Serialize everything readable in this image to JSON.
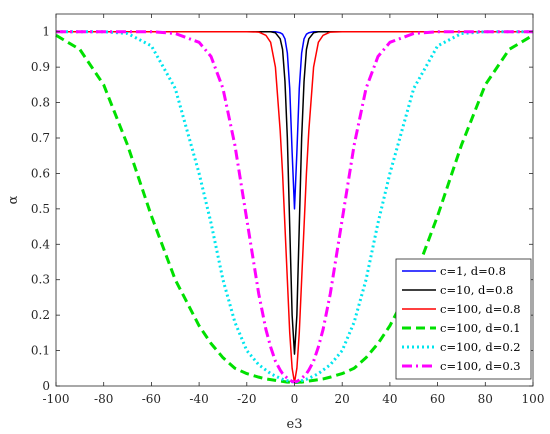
{
  "chart_data": {
    "type": "line",
    "title": "",
    "xlabel": "e3",
    "ylabel": "α",
    "xlim": [
      -100,
      100
    ],
    "ylim": [
      0,
      1.05
    ],
    "xticks": [
      -100,
      -80,
      -60,
      -40,
      -20,
      0,
      20,
      40,
      60,
      80,
      100
    ],
    "yticks": [
      0,
      0.1,
      0.2,
      0.3,
      0.4,
      0.5,
      0.6,
      0.7,
      0.8,
      0.9,
      1
    ],
    "xtick_labels": [
      "-100",
      "-80",
      "-60",
      "-40",
      "-20",
      "0",
      "20",
      "40",
      "60",
      "80",
      "100"
    ],
    "ytick_labels": [
      "0",
      "0.1",
      "0.2",
      "0.3",
      "0.4",
      "0.5",
      "0.6",
      "0.7",
      "0.8",
      "0.9",
      "1"
    ],
    "legend_position": "bottom-right",
    "grid": false,
    "x": [
      -100,
      -90,
      -80,
      -70,
      -60,
      -50,
      -40,
      -35,
      -30,
      -25,
      -20,
      -15,
      -12,
      -10,
      -8,
      -6,
      -5,
      -4,
      -3,
      -2,
      -1,
      0,
      1,
      2,
      3,
      4,
      5,
      6,
      8,
      10,
      12,
      15,
      20,
      25,
      30,
      35,
      40,
      50,
      60,
      70,
      80,
      90,
      100
    ],
    "series": [
      {
        "name": "c=1, d=0.8",
        "color": "#0000ff",
        "style": "solid",
        "values": [
          1,
          1,
          1,
          1,
          1,
          1,
          1,
          1,
          1,
          1,
          1,
          1,
          1,
          1,
          1,
          0.997,
          0.993,
          0.98,
          0.94,
          0.84,
          0.66,
          0.5,
          0.66,
          0.84,
          0.94,
          0.98,
          0.993,
          0.997,
          1,
          1,
          1,
          1,
          1,
          1,
          1,
          1,
          1,
          1,
          1,
          1,
          1,
          1,
          1
        ]
      },
      {
        "name": "c=10, d=0.8",
        "color": "#000000",
        "style": "solid",
        "values": [
          1,
          1,
          1,
          1,
          1,
          1,
          1,
          1,
          1,
          1,
          1,
          1,
          1,
          1,
          0.997,
          0.98,
          0.95,
          0.86,
          0.7,
          0.45,
          0.2,
          0.09,
          0.2,
          0.45,
          0.7,
          0.86,
          0.95,
          0.98,
          0.997,
          1,
          1,
          1,
          1,
          1,
          1,
          1,
          1,
          1,
          1,
          1,
          1,
          1,
          1
        ]
      },
      {
        "name": "c=100, d=0.8",
        "color": "#ff0000",
        "style": "solid",
        "values": [
          1,
          1,
          1,
          1,
          1,
          1,
          1,
          1,
          1,
          1,
          1,
          0.999,
          0.99,
          0.97,
          0.9,
          0.72,
          0.6,
          0.45,
          0.3,
          0.15,
          0.05,
          0.01,
          0.05,
          0.15,
          0.3,
          0.45,
          0.6,
          0.72,
          0.9,
          0.97,
          0.99,
          0.999,
          1,
          1,
          1,
          1,
          1,
          1,
          1,
          1,
          1,
          1,
          1
        ]
      },
      {
        "name": "c=100, d=0.1",
        "color": "#00e000",
        "style": "dashed",
        "values": [
          0.99,
          0.95,
          0.85,
          0.68,
          0.48,
          0.3,
          0.17,
          0.12,
          0.08,
          0.05,
          0.035,
          0.025,
          0.02,
          0.018,
          0.016,
          0.014,
          0.013,
          0.012,
          0.011,
          0.011,
          0.01,
          0.01,
          0.01,
          0.011,
          0.011,
          0.012,
          0.013,
          0.014,
          0.016,
          0.018,
          0.02,
          0.025,
          0.035,
          0.05,
          0.08,
          0.12,
          0.17,
          0.3,
          0.48,
          0.68,
          0.85,
          0.95,
          0.99
        ]
      },
      {
        "name": "c=100, d=0.2",
        "color": "#00e5ee",
        "style": "dotted",
        "values": [
          1,
          1,
          1,
          0.995,
          0.96,
          0.84,
          0.6,
          0.46,
          0.3,
          0.18,
          0.1,
          0.06,
          0.045,
          0.035,
          0.028,
          0.022,
          0.019,
          0.017,
          0.015,
          0.013,
          0.012,
          0.011,
          0.012,
          0.013,
          0.015,
          0.017,
          0.019,
          0.022,
          0.028,
          0.035,
          0.045,
          0.06,
          0.1,
          0.18,
          0.3,
          0.46,
          0.6,
          0.84,
          0.96,
          0.995,
          1,
          1,
          1
        ]
      },
      {
        "name": "c=100, d=0.3",
        "color": "#ff00ff",
        "style": "dashdot",
        "values": [
          1,
          1,
          1,
          1,
          1,
          0.995,
          0.97,
          0.93,
          0.84,
          0.68,
          0.47,
          0.26,
          0.16,
          0.11,
          0.07,
          0.045,
          0.035,
          0.028,
          0.022,
          0.017,
          0.013,
          0.011,
          0.013,
          0.017,
          0.022,
          0.028,
          0.035,
          0.045,
          0.07,
          0.11,
          0.16,
          0.26,
          0.47,
          0.68,
          0.84,
          0.93,
          0.97,
          0.995,
          1,
          1,
          1,
          1,
          1
        ]
      }
    ]
  }
}
